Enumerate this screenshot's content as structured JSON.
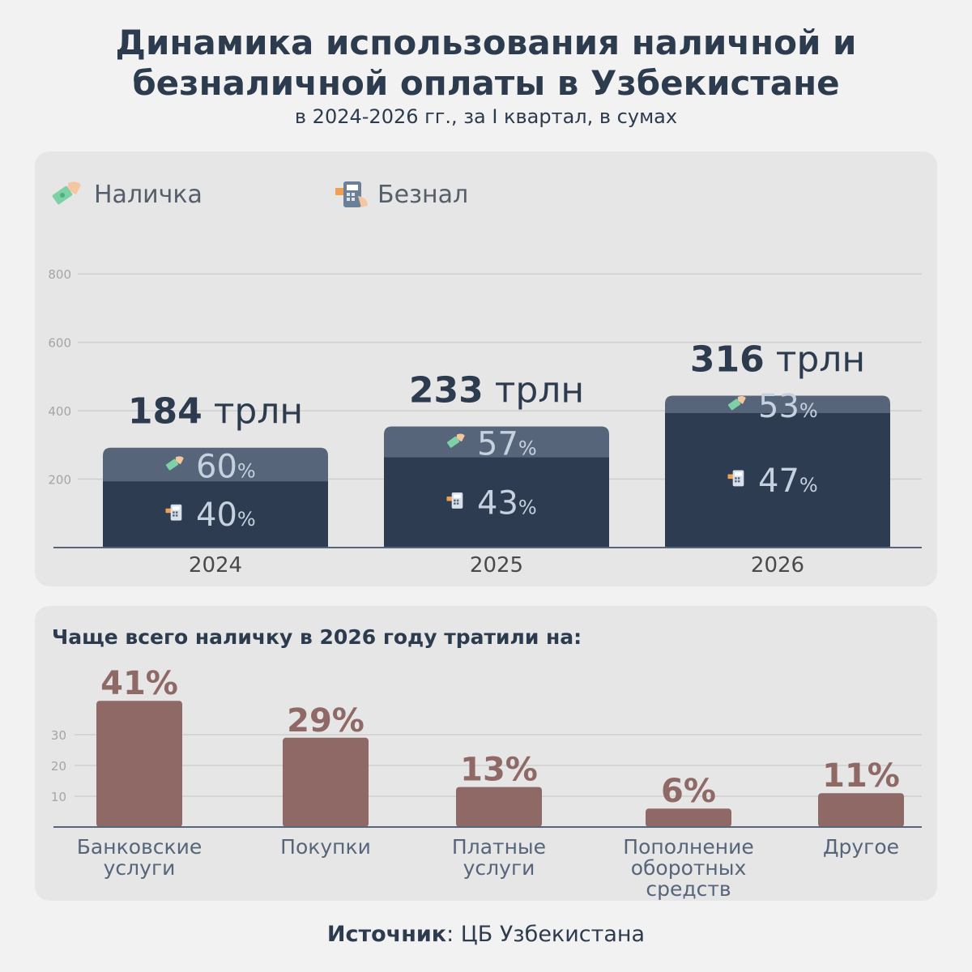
{
  "header": {
    "title_line1": "Динамика использования наличной и",
    "title_line2": "безналичной оплаты в Узбекистане",
    "subtitle": "в 2024-2026 гг., за I квартал, в сумах"
  },
  "legend": {
    "cash_label": "Наличка",
    "cashless_label": "Безнал",
    "cash_icon": "cash-hand-icon",
    "cashless_icon": "pos-terminal-icon"
  },
  "colors": {
    "cash": "#56657a",
    "cashless": "#2d3c50",
    "spend_bar": "#8f6965",
    "spend_label": "#8f6965"
  },
  "chart_data": [
    {
      "type": "bar",
      "stacked": true,
      "categories": [
        "2024",
        "2025",
        "2026"
      ],
      "series": [
        {
          "name": "Безнал",
          "values": [
            194,
            264,
            394
          ],
          "percent_labels": [
            "40",
            "43",
            "47"
          ]
        },
        {
          "name": "Наличка",
          "values": [
            292,
            354,
            444
          ],
          "percent_labels": [
            "60",
            "57",
            "53"
          ]
        }
      ],
      "totals": [
        {
          "value": "184",
          "unit": "трлн"
        },
        {
          "value": "233",
          "unit": "трлн"
        },
        {
          "value": "316",
          "unit": "трлн"
        }
      ],
      "percent_sign": "%",
      "y_ticks": [
        "200",
        "400",
        "600",
        "800"
      ],
      "ylim": [
        0,
        900
      ],
      "grid": true,
      "legend_position": "top-left"
    },
    {
      "type": "bar",
      "title": "Чаще всего наличку в 2026 году тратили на:",
      "categories": [
        [
          "Банковские",
          "услуги"
        ],
        [
          "Покупки"
        ],
        [
          "Платные",
          "услуги"
        ],
        [
          "Пополнение",
          "оборотных",
          "средств"
        ],
        [
          "Другое"
        ]
      ],
      "values": [
        41,
        29,
        13,
        6,
        11
      ],
      "value_labels": [
        "41%",
        "29%",
        "13%",
        "6%",
        "11%"
      ],
      "y_ticks": [
        "10",
        "20",
        "30"
      ],
      "ylim": [
        0,
        45
      ],
      "grid": true
    }
  ],
  "source": {
    "label": "Источник",
    "text": ": ЦБ Узбекистана"
  }
}
